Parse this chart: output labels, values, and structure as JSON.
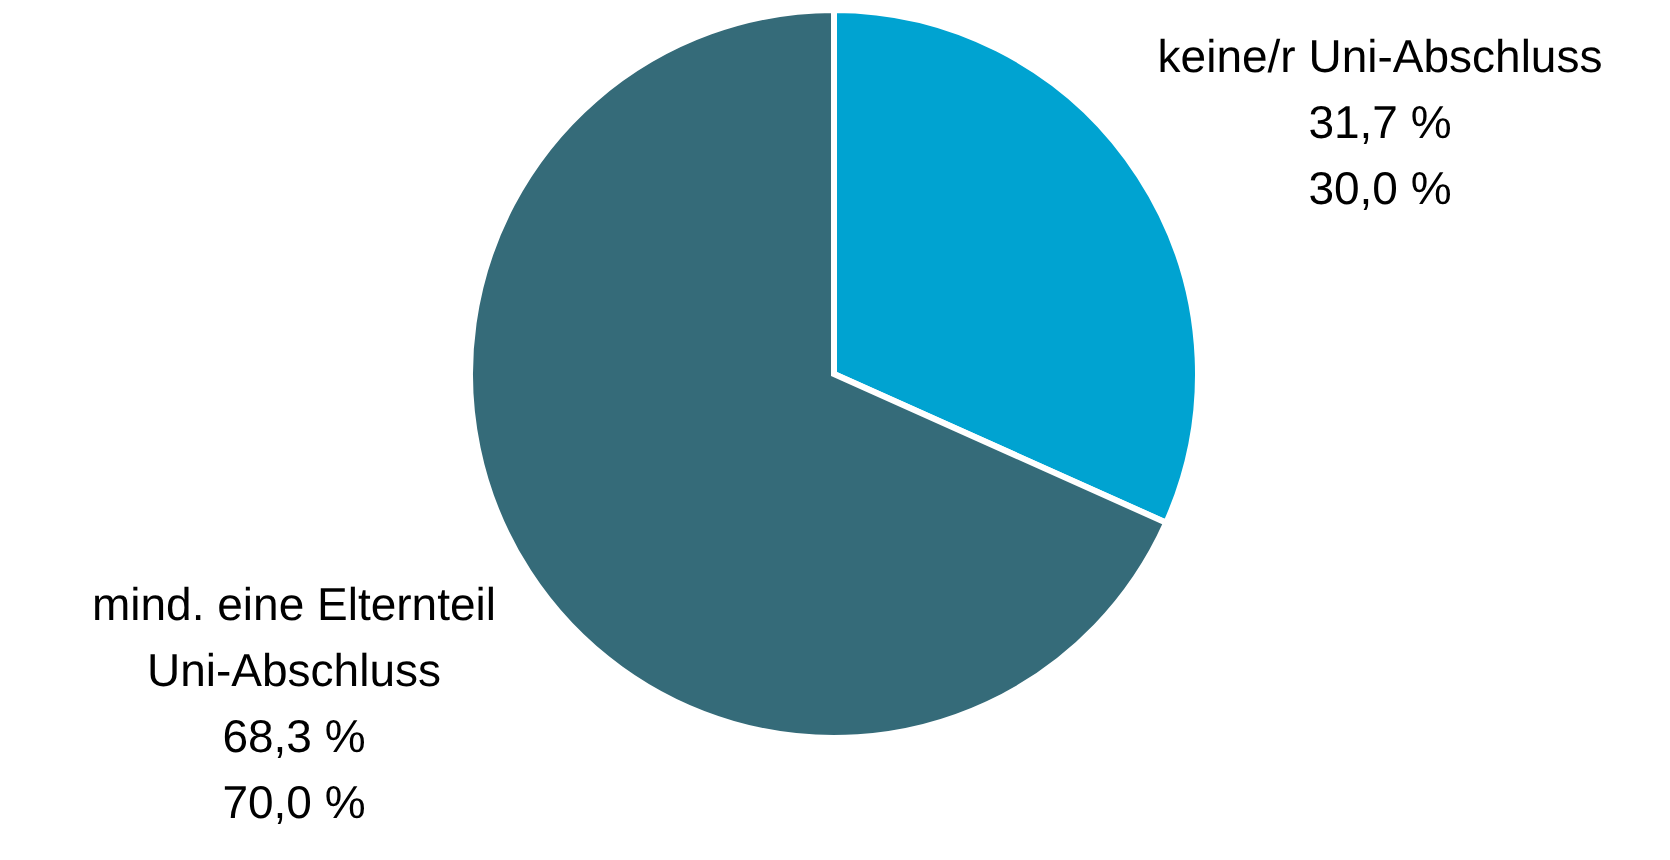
{
  "chart_data": {
    "type": "pie",
    "categories": [
      "keine/r Uni-Abschluss",
      "mind. eine Elternteil\nUni-Abschluss"
    ],
    "values": [
      31.7,
      68.3
    ],
    "colors": [
      "#00a3d1",
      "#356b79"
    ],
    "value_labels": [
      "31,7 %",
      "68,3 %"
    ],
    "annotations": [
      "30,0 %",
      "70,0 %"
    ]
  }
}
